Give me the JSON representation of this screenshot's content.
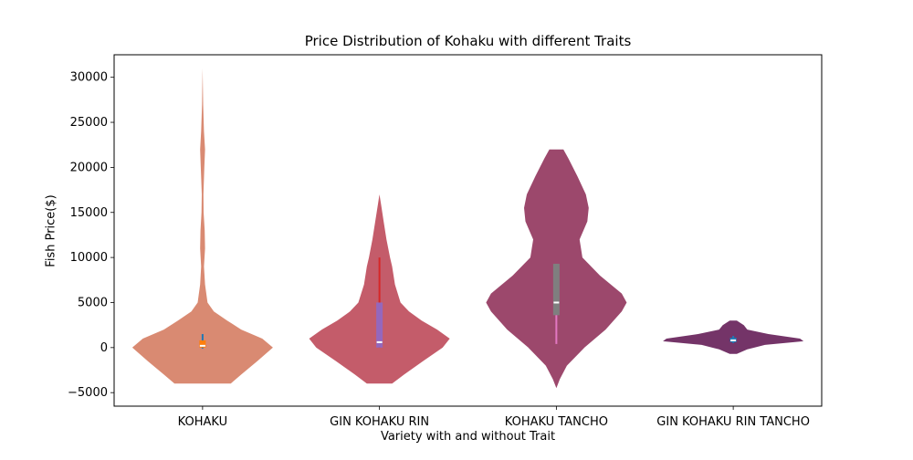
{
  "chart_data": {
    "type": "violin",
    "title": "Price Distribution of Kohaku with different Traits",
    "xlabel": "Variety with and without Trait",
    "ylabel": "Fish Price($)",
    "ylim": [
      -6500,
      32500
    ],
    "yticks": [
      -5000,
      0,
      5000,
      10000,
      15000,
      20000,
      25000,
      30000
    ],
    "ytick_labels": [
      "−5000",
      "0",
      "5000",
      "10000",
      "15000",
      "20000",
      "25000",
      "30000"
    ],
    "categories": [
      "KOHAKU",
      "GIN KOHAKU RIN",
      "KOHAKU TANCHO",
      "GIN KOHAKU RIN TANCHO"
    ],
    "grid": false,
    "violins": [
      {
        "category": "KOHAKU",
        "fill": "#d98a72",
        "y_min": -4000,
        "y_max": 31000,
        "profile": [
          [
            -4000,
            0.4
          ],
          [
            -3000,
            0.55
          ],
          [
            -1500,
            0.78
          ],
          [
            0,
            1.0
          ],
          [
            1000,
            0.85
          ],
          [
            2000,
            0.55
          ],
          [
            3000,
            0.35
          ],
          [
            4000,
            0.16
          ],
          [
            5000,
            0.07
          ],
          [
            7000,
            0.035
          ],
          [
            9000,
            0.02
          ],
          [
            11000,
            0.035
          ],
          [
            13000,
            0.03
          ],
          [
            15000,
            0.015
          ],
          [
            17000,
            0.012
          ],
          [
            20000,
            0.025
          ],
          [
            22000,
            0.035
          ],
          [
            24000,
            0.02
          ],
          [
            27000,
            0.008
          ],
          [
            31000,
            0.0
          ]
        ],
        "box": {
          "q1": 0,
          "median": 200,
          "q3": 800,
          "whisker_low": -100,
          "whisker_high": 1500
        },
        "box_color": "#ff7f0e",
        "whisker_color": "#1f77b4"
      },
      {
        "category": "GIN KOHAKU RIN",
        "fill": "#c45c6a",
        "y_min": -4000,
        "y_max": 17000,
        "profile": [
          [
            -4000,
            0.18
          ],
          [
            -3000,
            0.35
          ],
          [
            -1500,
            0.62
          ],
          [
            0,
            0.9
          ],
          [
            1000,
            1.0
          ],
          [
            2000,
            0.82
          ],
          [
            3000,
            0.6
          ],
          [
            4000,
            0.42
          ],
          [
            5000,
            0.3
          ],
          [
            7000,
            0.22
          ],
          [
            9000,
            0.18
          ],
          [
            10000,
            0.15
          ],
          [
            12000,
            0.1
          ],
          [
            14000,
            0.06
          ],
          [
            16000,
            0.02
          ],
          [
            17000,
            0.0
          ]
        ],
        "box": {
          "q1": 0,
          "median": 600,
          "q3": 5000,
          "whisker_low": 0,
          "whisker_high": 10000
        },
        "box_color": "#9467bd",
        "whisker_color": "#d62728"
      },
      {
        "category": "KOHAKU TANCHO",
        "fill": "#9c486c",
        "y_min": -4500,
        "y_max": 22000,
        "profile": [
          [
            -4500,
            0.0
          ],
          [
            -3500,
            0.05
          ],
          [
            -2000,
            0.15
          ],
          [
            0,
            0.4
          ],
          [
            2000,
            0.7
          ],
          [
            4000,
            0.93
          ],
          [
            5000,
            1.0
          ],
          [
            6000,
            0.93
          ],
          [
            8000,
            0.62
          ],
          [
            10000,
            0.37
          ],
          [
            12000,
            0.33
          ],
          [
            14000,
            0.44
          ],
          [
            15500,
            0.46
          ],
          [
            17000,
            0.42
          ],
          [
            19000,
            0.3
          ],
          [
            21000,
            0.17
          ],
          [
            22000,
            0.1
          ]
        ],
        "box": {
          "q1": 3600,
          "median": 5000,
          "q3": 9300,
          "whisker_low": 400,
          "whisker_high": 9300
        },
        "box_color": "#7f7f7f",
        "whisker_color": "#e377c2"
      },
      {
        "category": "GIN KOHAKU RIN TANCHO",
        "fill": "#743468",
        "y_min": -700,
        "y_max": 3000,
        "profile": [
          [
            -700,
            0.05
          ],
          [
            -200,
            0.2
          ],
          [
            300,
            0.45
          ],
          [
            700,
            1.0
          ],
          [
            1000,
            0.95
          ],
          [
            1500,
            0.5
          ],
          [
            2000,
            0.2
          ],
          [
            2500,
            0.15
          ],
          [
            3000,
            0.05
          ]
        ],
        "box": {
          "q1": 600,
          "median": 800,
          "q3": 1100,
          "whisker_low": 500,
          "whisker_high": 1300
        },
        "box_color": "#1f77b4",
        "whisker_color": "#1f77b4"
      }
    ]
  }
}
